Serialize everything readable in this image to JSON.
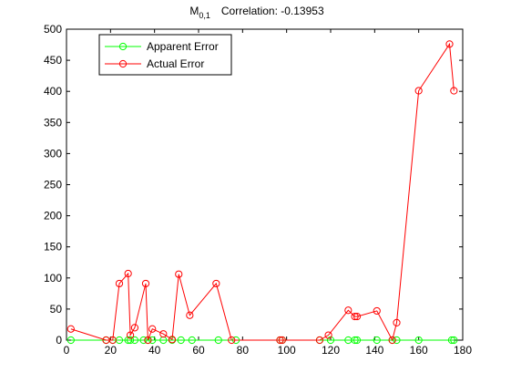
{
  "chart_data": {
    "type": "line",
    "title": {
      "main": "M",
      "subscript": "0,1",
      "correlation": "Correlation: -0.13953"
    },
    "xlabel": "",
    "ylabel": "",
    "xlim": [
      0,
      180
    ],
    "ylim": [
      0,
      500
    ],
    "xticks": [
      0,
      20,
      40,
      60,
      80,
      100,
      120,
      140,
      160,
      180
    ],
    "yticks": [
      0,
      50,
      100,
      150,
      200,
      250,
      300,
      350,
      400,
      450,
      500
    ],
    "grid": false,
    "legend_position": "top-left",
    "series": [
      {
        "name": "Apparent Error",
        "color": "#00ff00",
        "marker": "circle",
        "points": [
          [
            2,
            0
          ],
          [
            18,
            0
          ],
          [
            21,
            0
          ],
          [
            24,
            0
          ],
          [
            28,
            0
          ],
          [
            29,
            0
          ],
          [
            31,
            0
          ],
          [
            35,
            0
          ],
          [
            37,
            0
          ],
          [
            39,
            0
          ],
          [
            44,
            0
          ],
          [
            48,
            0
          ],
          [
            52,
            0
          ],
          [
            57,
            0
          ],
          [
            69,
            0
          ],
          [
            77,
            0
          ],
          [
            97,
            0
          ],
          [
            98,
            0
          ],
          [
            115,
            0
          ],
          [
            120,
            0
          ],
          [
            128,
            0
          ],
          [
            131,
            0
          ],
          [
            132,
            0
          ],
          [
            141,
            0
          ],
          [
            148,
            0
          ],
          [
            150,
            0
          ],
          [
            160,
            0
          ],
          [
            175,
            0
          ],
          [
            176,
            0
          ]
        ]
      },
      {
        "name": "Actual Error",
        "color": "#ff0000",
        "marker": "circle",
        "points": [
          [
            2,
            18
          ],
          [
            18,
            0
          ],
          [
            21,
            0
          ],
          [
            24,
            91
          ],
          [
            28,
            107
          ],
          [
            29,
            8
          ],
          [
            31,
            20
          ],
          [
            36,
            91
          ],
          [
            37,
            0
          ],
          [
            39,
            18
          ],
          [
            44,
            10
          ],
          [
            48,
            1
          ],
          [
            51,
            106
          ],
          [
            56,
            40
          ],
          [
            68,
            91
          ],
          [
            75,
            0
          ],
          [
            97,
            0
          ],
          [
            98,
            0
          ],
          [
            115,
            0
          ],
          [
            119,
            8
          ],
          [
            128,
            48
          ],
          [
            131,
            38
          ],
          [
            132,
            38
          ],
          [
            141,
            47
          ],
          [
            148,
            0
          ],
          [
            150,
            28
          ],
          [
            160,
            401
          ],
          [
            174,
            476
          ],
          [
            176,
            401
          ]
        ]
      }
    ]
  }
}
